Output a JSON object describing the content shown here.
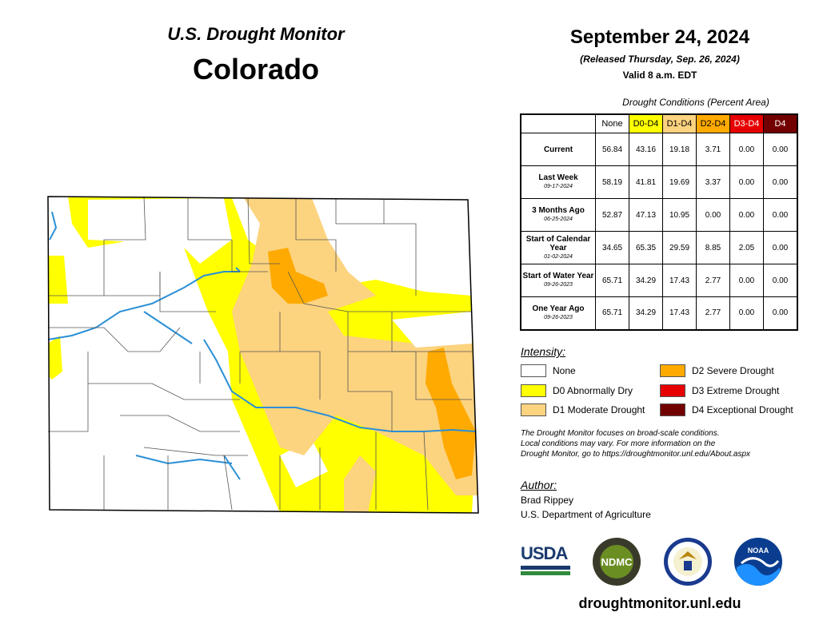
{
  "header": {
    "brand": "U.S. Drought Monitor",
    "state": "Colorado",
    "date": "September 24, 2024",
    "release": "(Released Thursday, Sep. 26, 2024)",
    "valid": "Valid 8 a.m. EDT"
  },
  "table": {
    "caption": "Drought Conditions (Percent Area)",
    "columns": [
      "None",
      "D0-D4",
      "D1-D4",
      "D2-D4",
      "D3-D4",
      "D4"
    ],
    "column_colors": [
      "#ffffff",
      "#ffff00",
      "#fcd37f",
      "#ffaa00",
      "#e60000",
      "#730000"
    ],
    "rows": [
      {
        "label": "Current",
        "date": "",
        "values": [
          "56.84",
          "43.16",
          "19.18",
          "3.71",
          "0.00",
          "0.00"
        ]
      },
      {
        "label": "Last Week",
        "date": "09-17-2024",
        "values": [
          "58.19",
          "41.81",
          "19.69",
          "3.37",
          "0.00",
          "0.00"
        ]
      },
      {
        "label": "3 Months Ago",
        "date": "06-25-2024",
        "values": [
          "52.87",
          "47.13",
          "10.95",
          "0.00",
          "0.00",
          "0.00"
        ]
      },
      {
        "label": "Start of Calendar Year",
        "date": "01-02-2024",
        "values": [
          "34.65",
          "65.35",
          "29.59",
          "8.85",
          "2.05",
          "0.00"
        ]
      },
      {
        "label": "Start of Water Year",
        "date": "09-26-2023",
        "values": [
          "65.71",
          "34.29",
          "17.43",
          "2.77",
          "0.00",
          "0.00"
        ]
      },
      {
        "label": "One Year Ago",
        "date": "09-26-2023",
        "values": [
          "65.71",
          "34.29",
          "17.43",
          "2.77",
          "0.00",
          "0.00"
        ]
      }
    ]
  },
  "legend": {
    "heading": "Intensity:",
    "items": [
      {
        "label": "None",
        "color": "#ffffff"
      },
      {
        "label": "D0 Abnormally Dry",
        "color": "#ffff00"
      },
      {
        "label": "D1 Moderate Drought",
        "color": "#fcd37f"
      },
      {
        "label": "D2 Severe Drought",
        "color": "#ffaa00"
      },
      {
        "label": "D3 Extreme Drought",
        "color": "#e60000"
      },
      {
        "label": "D4 Exceptional Drought",
        "color": "#730000"
      }
    ]
  },
  "note": {
    "line1": "The Drought Monitor focuses on broad-scale conditions.",
    "line2": "Local conditions may vary. For more information on the",
    "line3": "Drought Monitor, go to https://droughtmonitor.unl.edu/About.aspx"
  },
  "author": {
    "heading": "Author:",
    "name": "Brad Rippey",
    "org": "U.S. Department of Agriculture"
  },
  "logos": {
    "usda": "USDA",
    "ndmc": "NDMC",
    "noaa": "NOAA"
  },
  "footer": {
    "url": "droughtmonitor.unl.edu"
  }
}
